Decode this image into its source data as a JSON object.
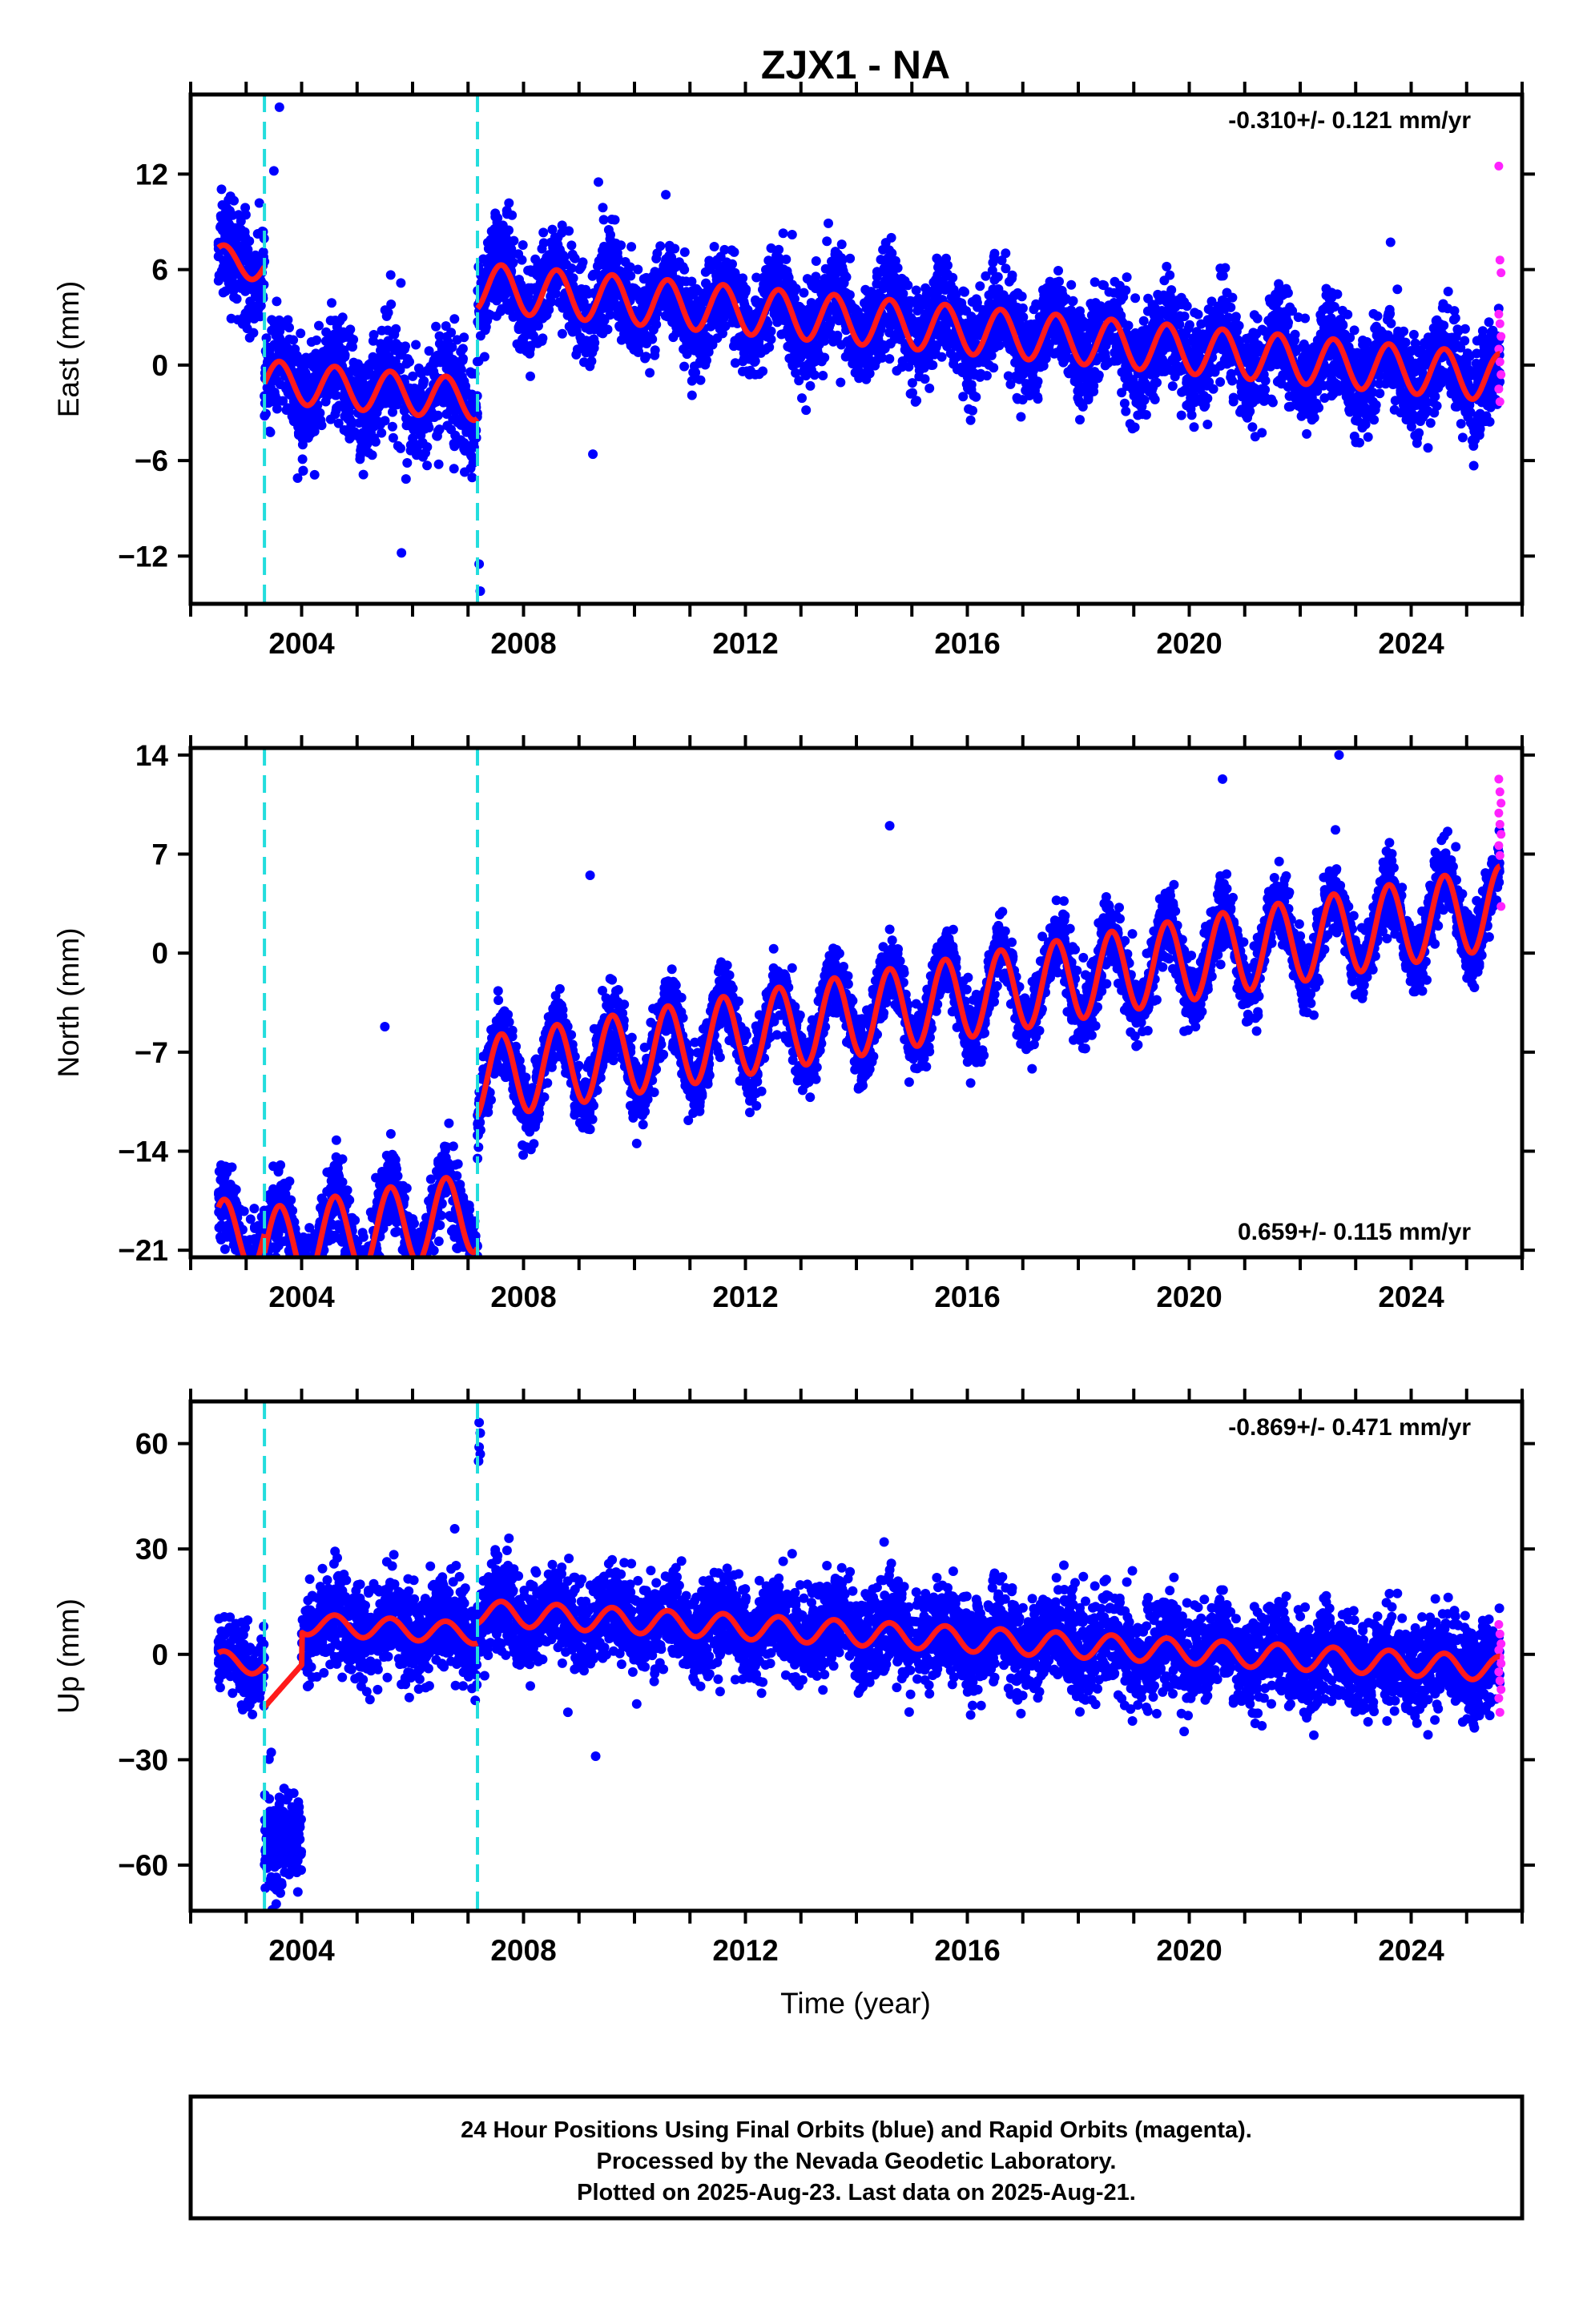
{
  "title": "ZJX1 - NA",
  "xlabel": "Time (year)",
  "colors": {
    "final": "#0000ff",
    "rapid": "#ff22ff",
    "model": "#ff1a1a",
    "breaks": "#22dddd",
    "frame": "#000000"
  },
  "chart_data": [
    {
      "type": "scatter",
      "panel": "east",
      "ylabel": "East (mm)",
      "rate": "-0.310+/- 0.121 mm/yr",
      "rate_position": "top-right",
      "xlim": [
        2002.0,
        2026.0
      ],
      "ylim": [
        -15.0,
        17.0
      ],
      "yticks": [
        "12",
        "6",
        "0",
        "-6",
        "-12"
      ],
      "ytick_values": [
        12,
        6,
        0,
        -6,
        -12
      ],
      "xticks": [
        "2004",
        "2008",
        "2012",
        "2016",
        "2020",
        "2024"
      ],
      "xtick_values": [
        2004,
        2008,
        2012,
        2016,
        2020,
        2024
      ],
      "breaks": [
        2003.33,
        2007.17
      ],
      "segments": [
        {
          "start": 2002.5,
          "end": 2003.33,
          "offset": 3.0,
          "trend": -0.31,
          "amp": 1.0,
          "spread": 1.6
        },
        {
          "start": 2003.33,
          "end": 2007.17,
          "offset": -4.3,
          "trend": -0.31,
          "amp": 1.3,
          "spread": 1.7
        },
        {
          "start": 2007.17,
          "end": 2025.6,
          "offset": 2.8,
          "trend": -0.31,
          "amp": 1.5,
          "spread": 1.5
        }
      ],
      "rapid": {
        "start": 2025.58,
        "end": 2025.63,
        "values": [
          12.5,
          6.6,
          5.8,
          3.2,
          2.6,
          1.8,
          1.0,
          0.2,
          -0.6,
          -1.5,
          -2.3
        ]
      },
      "outliers": [
        [
          2003.6,
          16.2
        ],
        [
          2003.5,
          12.2
        ],
        [
          2009.35,
          11.5
        ],
        [
          2009.25,
          -5.6
        ],
        [
          2007.2,
          -12.5
        ],
        [
          2007.22,
          -14.2
        ],
        [
          2005.8,
          -11.8
        ]
      ]
    },
    {
      "type": "scatter",
      "panel": "north",
      "ylabel": "North (mm)",
      "rate": "0.659+/- 0.115 mm/yr",
      "rate_position": "bottom-right",
      "xlim": [
        2002.0,
        2026.0
      ],
      "ylim": [
        -21.5,
        14.5
      ],
      "yticks": [
        "14",
        "7",
        "0",
        "-7",
        "-14",
        "-21"
      ],
      "ytick_values": [
        14,
        7,
        0,
        -7,
        -14,
        -21
      ],
      "xticks": [
        "2004",
        "2008",
        "2012",
        "2016",
        "2020",
        "2024"
      ],
      "xtick_values": [
        2004,
        2008,
        2012,
        2016,
        2020,
        2024
      ],
      "breaks": [
        2003.33,
        2007.17
      ],
      "segments": [
        {
          "start": 2002.5,
          "end": 2003.33,
          "offset": -12.5,
          "trend": 0.659,
          "amp": 2.6,
          "spread": 1.4
        },
        {
          "start": 2003.33,
          "end": 2007.17,
          "offset": -13.8,
          "trend": 0.659,
          "amp": 2.8,
          "spread": 1.4
        },
        {
          "start": 2007.17,
          "end": 2025.6,
          "offset": -4.4,
          "trend": 0.659,
          "amp": 2.9,
          "spread": 1.2
        }
      ],
      "rapid": {
        "start": 2025.58,
        "end": 2025.63,
        "values": [
          12.3,
          11.4,
          10.6,
          9.9,
          9.1,
          8.4,
          7.6,
          6.9,
          3.3
        ]
      },
      "outliers": [
        [
          2005.5,
          -5.2
        ],
        [
          2009.2,
          5.5
        ],
        [
          2014.6,
          9.0
        ],
        [
          2022.7,
          14.0
        ],
        [
          2020.6,
          12.3
        ],
        [
          2003.95,
          -20.7
        ]
      ]
    },
    {
      "type": "scatter",
      "panel": "up",
      "ylabel": "Up (mm)",
      "rate": "-0.869+/- 0.471 mm/yr",
      "rate_position": "top-right",
      "xlim": [
        2002.0,
        2026.0
      ],
      "ylim": [
        -73.0,
        72.0
      ],
      "yticks": [
        "60",
        "30",
        "0",
        "-30",
        "-60"
      ],
      "ytick_values": [
        60,
        30,
        0,
        -30,
        -60
      ],
      "xticks": [
        "2004",
        "2008",
        "2012",
        "2016",
        "2020",
        "2024"
      ],
      "xtick_values": [
        2004,
        2008,
        2012,
        2016,
        2020,
        2024
      ],
      "breaks": [
        2003.33,
        2007.17
      ],
      "segments": [
        {
          "start": 2002.5,
          "end": 2003.33,
          "offset": -12.0,
          "trend": -0.869,
          "amp": 3.0,
          "spread": 5.0
        },
        {
          "start": 2003.33,
          "end": 2007.17,
          "offset": 0.0,
          "trend": -0.869,
          "amp": 3.0,
          "spread": 6.5
        },
        {
          "start": 2007.17,
          "end": 2025.6,
          "offset": 6.0,
          "trend": -0.869,
          "amp": 3.5,
          "spread": 6.5
        }
      ],
      "cluster": {
        "start": 2003.33,
        "end": 2004.0,
        "center": -53.0,
        "spread": 7.0
      },
      "model_gap": {
        "start": 2003.33,
        "end": 2004.0
      },
      "rapid": {
        "start": 2025.58,
        "end": 2025.63,
        "values": [
          8.5,
          5.8,
          3.0,
          1.2,
          -0.8,
          -2.6,
          -5.0,
          -7.5,
          -10.0,
          -12.5,
          -16.5
        ]
      },
      "outliers": [
        [
          2007.2,
          66.0
        ],
        [
          2007.22,
          63.0
        ],
        [
          2007.2,
          59.0
        ],
        [
          2007.22,
          57.0
        ],
        [
          2007.19,
          55.0
        ],
        [
          2009.3,
          -29.0
        ],
        [
          2014.5,
          32.0
        ],
        [
          2008.8,
          -16.5
        ]
      ]
    }
  ],
  "footer": {
    "line1": "24 Hour Positions Using Final Orbits (blue) and Rapid Orbits (magenta).",
    "line2": "Processed by the Nevada Geodetic Laboratory.",
    "line3": "Plotted on 2025-Aug-23. Last data on 2025-Aug-21."
  }
}
